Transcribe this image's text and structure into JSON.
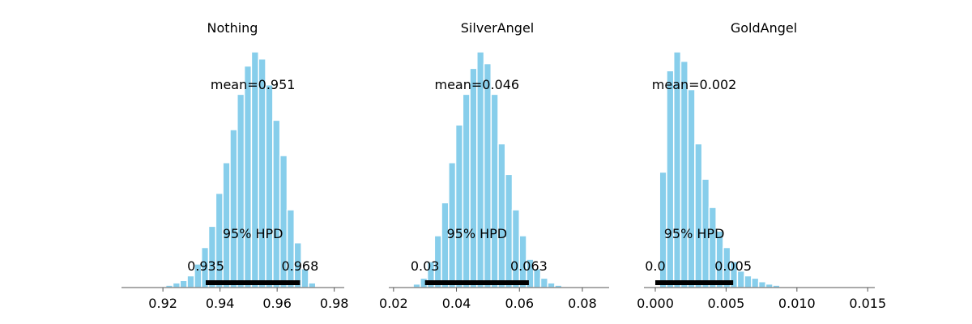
{
  "chart_data": [
    {
      "type": "histogram",
      "title": "Nothing",
      "bar_color": "#87ceeb",
      "xlim": [
        0.9055,
        0.9835
      ],
      "xticks": [
        0.92,
        0.94,
        0.96,
        0.98
      ],
      "xtick_labels": [
        "0.92",
        "0.94",
        "0.96",
        "0.98"
      ],
      "bin_start": 0.921,
      "bin_width": 0.0025,
      "counts": [
        1,
        2,
        3,
        5,
        10,
        17,
        26,
        40,
        53,
        67,
        82,
        94,
        100,
        97,
        86,
        71,
        56,
        33,
        19,
        8,
        2
      ],
      "mean_label": "mean=0.951",
      "hpd_label": "95% HPD",
      "hpd_low": 0.935,
      "hpd_high": 0.968,
      "hpd_low_label": "0.935",
      "hpd_high_label": "0.968"
    },
    {
      "type": "histogram",
      "title": "SilverAngel",
      "bar_color": "#87ceeb",
      "xlim": [
        0.0185,
        0.0885
      ],
      "xticks": [
        0.02,
        0.04,
        0.06,
        0.08
      ],
      "xtick_labels": [
        "0.02",
        "0.04",
        "0.06",
        "0.08"
      ],
      "bin_start": 0.024,
      "bin_width": 0.00225,
      "counts": [
        0.5,
        1.5,
        4,
        11,
        22,
        36,
        53,
        69,
        82,
        93,
        100,
        95,
        82,
        61,
        48,
        33,
        22,
        12,
        8,
        4,
        2,
        1,
        0.5
      ],
      "mean_label": "mean=0.046",
      "hpd_label": "95% HPD",
      "hpd_low": 0.03,
      "hpd_high": 0.063,
      "hpd_low_label": "0.03",
      "hpd_high_label": "0.063"
    },
    {
      "type": "histogram",
      "title": "GoldAngel",
      "bar_color": "#87ceeb",
      "xlim": [
        -0.0008,
        0.0155
      ],
      "xticks": [
        0.0,
        0.005,
        0.01,
        0.015
      ],
      "xtick_labels": [
        "0.000",
        "0.005",
        "0.010",
        "0.015"
      ],
      "bin_start": 0.0003,
      "bin_width": 0.0005,
      "counts": [
        49,
        92,
        100,
        96,
        84,
        61,
        46,
        34,
        24,
        17,
        11,
        7,
        5,
        4,
        2.5,
        1.5,
        1,
        0.5,
        0.3
      ],
      "mean_label": "mean=0.002",
      "hpd_label": "95% HPD",
      "hpd_low": 0.0,
      "hpd_high": 0.0055,
      "hpd_low_label": "0.0",
      "hpd_high_label": "0.005"
    }
  ]
}
